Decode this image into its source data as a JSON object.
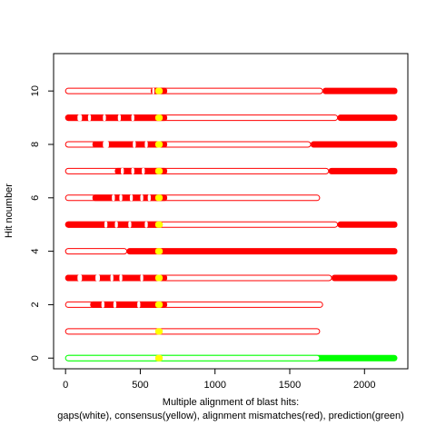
{
  "chart_data": {
    "type": "alignment",
    "title": "",
    "xlabel_line1": "Multiple alignment of blast hits:",
    "xlabel_line2": "gaps(white), consensus(yellow), alignment mismatches(red), prediction(green)",
    "ylabel": "Hit noumber",
    "xlim": [
      -80,
      2290
    ],
    "ylim": [
      -0.4,
      11.4
    ],
    "x_ticks": [
      0,
      500,
      1000,
      1500,
      2000
    ],
    "y_ticks": [
      0,
      2,
      4,
      6,
      8,
      10
    ],
    "colors": {
      "gap": "#ffffff",
      "consensus": "#ffff00",
      "mismatch": "#ff0000",
      "prediction": "#00ff00",
      "outline": "#ff0000",
      "prediction_outline": "#00ff00"
    },
    "hits": [
      {
        "hit": 0,
        "kind": "prediction",
        "start": 0,
        "end": 2220,
        "outline_end": 1700,
        "segments": [
          {
            "type": "consensus",
            "start": 600,
            "end": 650
          }
        ]
      },
      {
        "hit": 1,
        "kind": "hit",
        "start": 0,
        "end": 1700,
        "outline_end": 1700,
        "segments": [
          {
            "type": "consensus",
            "start": 600,
            "end": 650
          }
        ]
      },
      {
        "hit": 2,
        "kind": "hit",
        "start": 0,
        "end": 1720,
        "outline_end": 1720,
        "segments": [
          {
            "type": "mismatch",
            "start": 165,
            "end": 680
          },
          {
            "type": "gap",
            "start": 240,
            "end": 260
          },
          {
            "type": "gap",
            "start": 320,
            "end": 340
          },
          {
            "type": "gap",
            "start": 480,
            "end": 500
          },
          {
            "type": "consensus",
            "start": 600,
            "end": 650
          }
        ]
      },
      {
        "hit": 3,
        "kind": "hit",
        "start": 0,
        "end": 2220,
        "outline_end": 1780,
        "segments": [
          {
            "type": "mismatch",
            "start": 0,
            "end": 680
          },
          {
            "type": "gap",
            "start": 80,
            "end": 110
          },
          {
            "type": "gap",
            "start": 200,
            "end": 230
          },
          {
            "type": "gap",
            "start": 300,
            "end": 320
          },
          {
            "type": "gap",
            "start": 360,
            "end": 380
          },
          {
            "type": "gap",
            "start": 500,
            "end": 520
          },
          {
            "type": "consensus",
            "start": 600,
            "end": 650
          },
          {
            "type": "mismatch",
            "start": 1780,
            "end": 2220
          }
        ]
      },
      {
        "hit": 4,
        "kind": "hit",
        "start": 0,
        "end": 2220,
        "outline_end": 410,
        "segments": [
          {
            "type": "mismatch",
            "start": 410,
            "end": 2220
          },
          {
            "type": "consensus",
            "start": 600,
            "end": 650
          }
        ]
      },
      {
        "hit": 5,
        "kind": "hit",
        "start": 0,
        "end": 2220,
        "outline_end": 1820,
        "segments": [
          {
            "type": "mismatch",
            "start": 0,
            "end": 650
          },
          {
            "type": "gap",
            "start": 260,
            "end": 280
          },
          {
            "type": "gap",
            "start": 330,
            "end": 350
          },
          {
            "type": "gap",
            "start": 420,
            "end": 440
          },
          {
            "type": "gap",
            "start": 530,
            "end": 550
          },
          {
            "type": "consensus",
            "start": 600,
            "end": 650
          },
          {
            "type": "mismatch",
            "start": 1820,
            "end": 2220
          }
        ]
      },
      {
        "hit": 6,
        "kind": "hit",
        "start": 0,
        "end": 1700,
        "outline_end": 1700,
        "segments": [
          {
            "type": "mismatch",
            "start": 180,
            "end": 680
          },
          {
            "type": "gap",
            "start": 310,
            "end": 330
          },
          {
            "type": "gap",
            "start": 360,
            "end": 380
          },
          {
            "type": "gap",
            "start": 430,
            "end": 450
          },
          {
            "type": "gap",
            "start": 500,
            "end": 520
          },
          {
            "type": "gap",
            "start": 550,
            "end": 570
          },
          {
            "type": "consensus",
            "start": 600,
            "end": 650
          }
        ]
      },
      {
        "hit": 7,
        "kind": "hit",
        "start": 0,
        "end": 2220,
        "outline_end": 1760,
        "segments": [
          {
            "type": "mismatch",
            "start": 330,
            "end": 680
          },
          {
            "type": "gap",
            "start": 370,
            "end": 390
          },
          {
            "type": "gap",
            "start": 440,
            "end": 460
          },
          {
            "type": "gap",
            "start": 510,
            "end": 530
          },
          {
            "type": "consensus",
            "start": 600,
            "end": 650
          },
          {
            "type": "mismatch",
            "start": 1760,
            "end": 2220
          }
        ]
      },
      {
        "hit": 8,
        "kind": "hit",
        "start": 0,
        "end": 2220,
        "outline_end": 1640,
        "segments": [
          {
            "type": "mismatch",
            "start": 180,
            "end": 680
          },
          {
            "type": "gap",
            "start": 250,
            "end": 290
          },
          {
            "type": "gap",
            "start": 450,
            "end": 470
          },
          {
            "type": "gap",
            "start": 530,
            "end": 550
          },
          {
            "type": "consensus",
            "start": 600,
            "end": 650
          },
          {
            "type": "mismatch",
            "start": 1640,
            "end": 2220
          }
        ]
      },
      {
        "hit": 9,
        "kind": "hit",
        "start": 0,
        "end": 2220,
        "outline_end": 1820,
        "segments": [
          {
            "type": "mismatch",
            "start": 0,
            "end": 680
          },
          {
            "type": "gap",
            "start": 80,
            "end": 110
          },
          {
            "type": "gap",
            "start": 150,
            "end": 170
          },
          {
            "type": "gap",
            "start": 250,
            "end": 270
          },
          {
            "type": "gap",
            "start": 350,
            "end": 370
          },
          {
            "type": "gap",
            "start": 440,
            "end": 460
          },
          {
            "type": "consensus",
            "start": 600,
            "end": 650
          },
          {
            "type": "mismatch",
            "start": 1820,
            "end": 2220
          }
        ]
      },
      {
        "hit": 10,
        "kind": "hit",
        "start": 0,
        "end": 2220,
        "outline_end": 1720,
        "segments": [
          {
            "type": "mismatch",
            "start": 570,
            "end": 680
          },
          {
            "type": "gap",
            "start": 580,
            "end": 595
          },
          {
            "type": "consensus",
            "start": 600,
            "end": 650
          },
          {
            "type": "mismatch",
            "start": 1720,
            "end": 2220
          }
        ]
      }
    ]
  }
}
